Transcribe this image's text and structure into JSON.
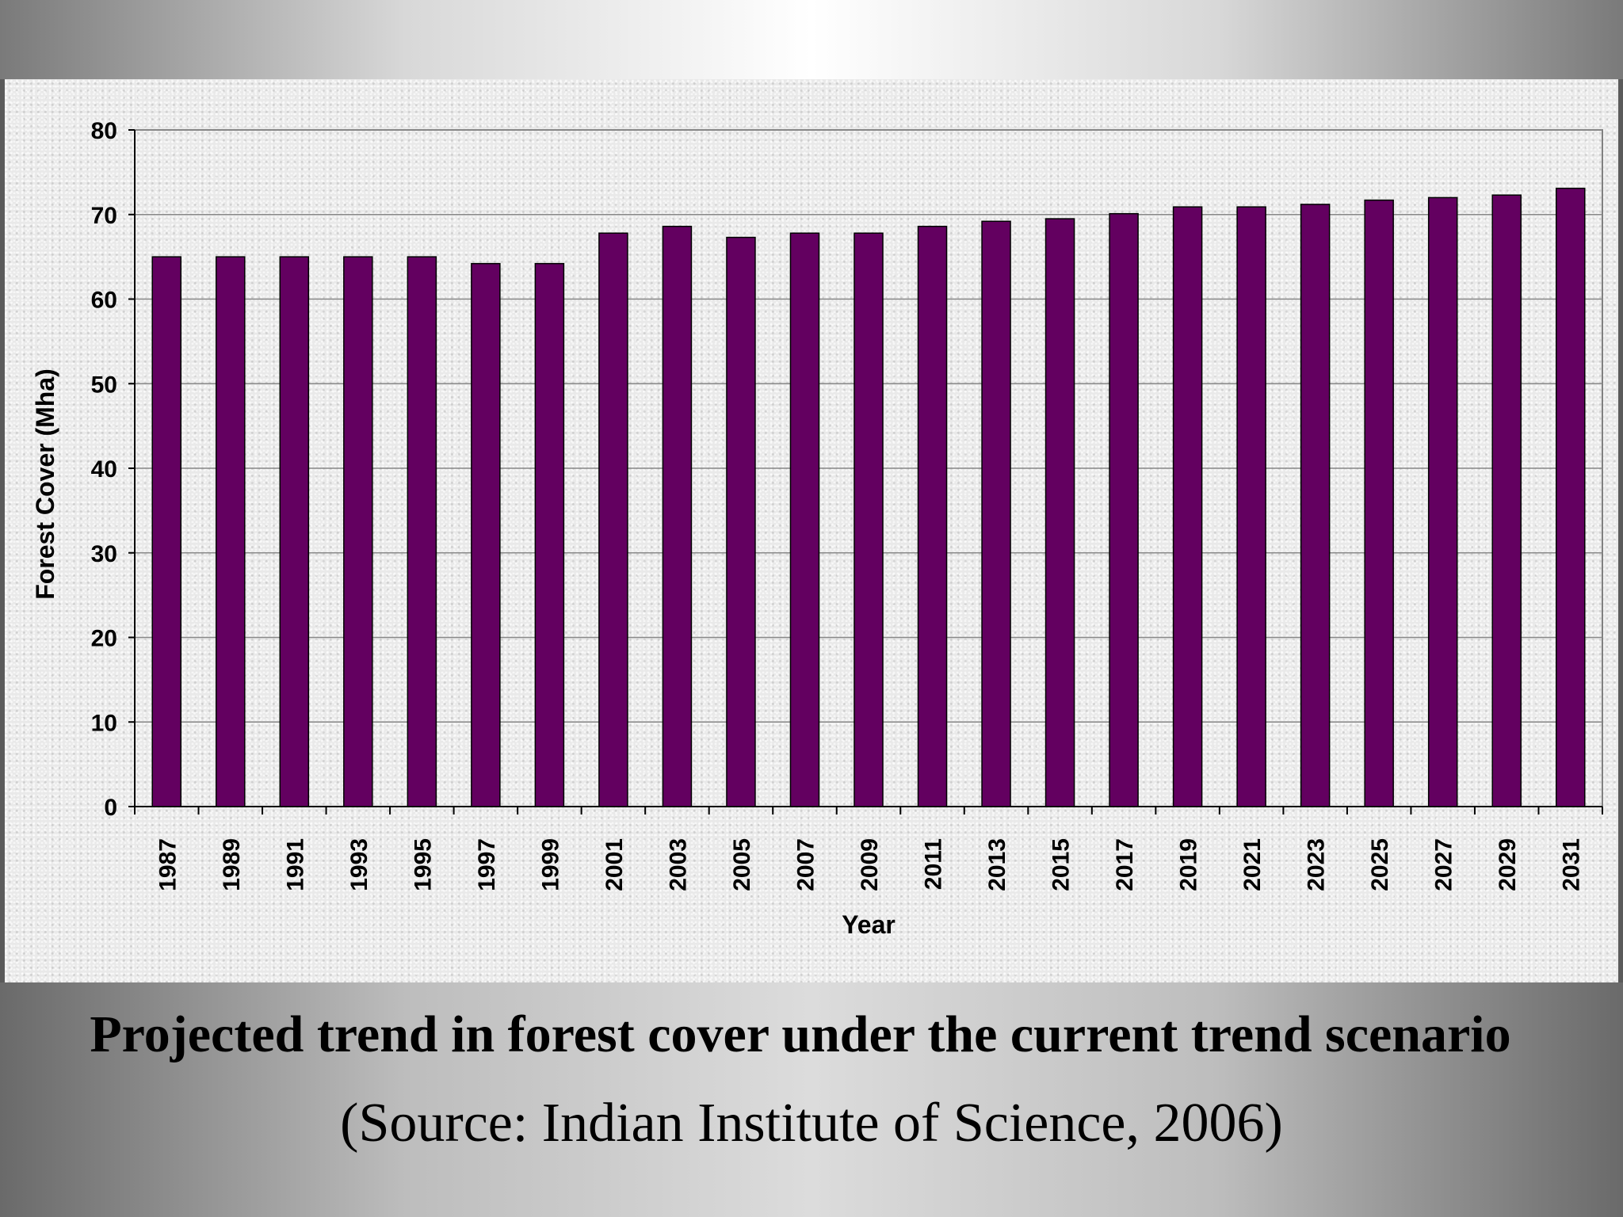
{
  "caption": {
    "title": "Projected trend in forest cover under the current trend scenario",
    "source": "(Source: Indian Institute of Science, 2006)"
  },
  "colors": {
    "bar": "#630060",
    "bar_outline": "#000000",
    "gridline": "#888888"
  },
  "chart_data": {
    "type": "bar",
    "title": "",
    "xlabel": "Year",
    "ylabel": "Forest Cover (Mha)",
    "ylim": [
      0,
      80
    ],
    "yticks": [
      0,
      10,
      20,
      30,
      40,
      50,
      60,
      70,
      80
    ],
    "grid": true,
    "categories": [
      "1987",
      "1989",
      "1991",
      "1993",
      "1995",
      "1997",
      "1999",
      "2001",
      "2003",
      "2005",
      "2007",
      "2009",
      "2011",
      "2013",
      "2015",
      "2017",
      "2019",
      "2021",
      "2023",
      "2025",
      "2027",
      "2029",
      "2031"
    ],
    "values": [
      65,
      65,
      65,
      65,
      65,
      64.2,
      64.2,
      67.8,
      68.6,
      67.3,
      67.8,
      67.8,
      68.6,
      69.2,
      69.5,
      70.1,
      70.9,
      70.9,
      71.2,
      71.7,
      72.0,
      72.3,
      73.1
    ]
  }
}
